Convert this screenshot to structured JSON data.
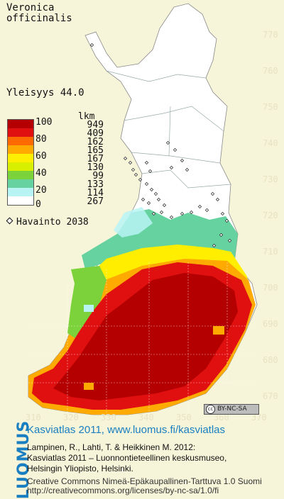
{
  "map": {
    "species_line1": "Veronica",
    "species_line2": "officinalis",
    "frequency_label": "Yleisyys  44.0",
    "legend_header": "lkm",
    "legend": [
      {
        "label": "100",
        "count": "949",
        "color": "#b40000"
      },
      {
        "label": "",
        "count": "409",
        "color": "#e01010"
      },
      {
        "label": "80",
        "count": "162",
        "color": "#ff6a00"
      },
      {
        "label": "",
        "count": "165",
        "color": "#ffaa00"
      },
      {
        "label": "60",
        "count": "167",
        "color": "#ffee00"
      },
      {
        "label": "",
        "count": "130",
        "color": "#d8f000"
      },
      {
        "label": "40",
        "count": "99",
        "color": "#7cd23a"
      },
      {
        "label": "",
        "count": "133",
        "color": "#66d2a0"
      },
      {
        "label": "20",
        "count": "114",
        "color": "#b8f4f4"
      },
      {
        "label": "0",
        "count": "267",
        "color": "#ffffff"
      }
    ],
    "observation_label": "Havainto 2038",
    "y_ticks": [
      "770",
      "760",
      "750",
      "740",
      "730",
      "720",
      "710",
      "700",
      "690",
      "680",
      "670"
    ],
    "x_ticks": [
      "310",
      "320",
      "330",
      "340",
      "350",
      "360",
      "370"
    ],
    "license_badge": "BY-NC-SA",
    "cc_symbol": "cc"
  },
  "footer": {
    "logo": "LUOMUS",
    "title": "Kasviatlas 2011, www.luomus.fi/kasviatlas",
    "citation1": "Lampinen, R., Lahti, T. & Heikkinen M. 2012:",
    "citation2": "Kasviatlas 2011 – Luonnontieteellinen keskusmuseo,",
    "citation3": "Helsingin Yliopisto, Helsinki.",
    "license1": "Creative Commons Nimeä-Epäkaupallinen-Tarttuva 1.0 Suomi",
    "license2": "http://creativecommons.org/licenses/by-nc-sa/1.0/fi"
  }
}
